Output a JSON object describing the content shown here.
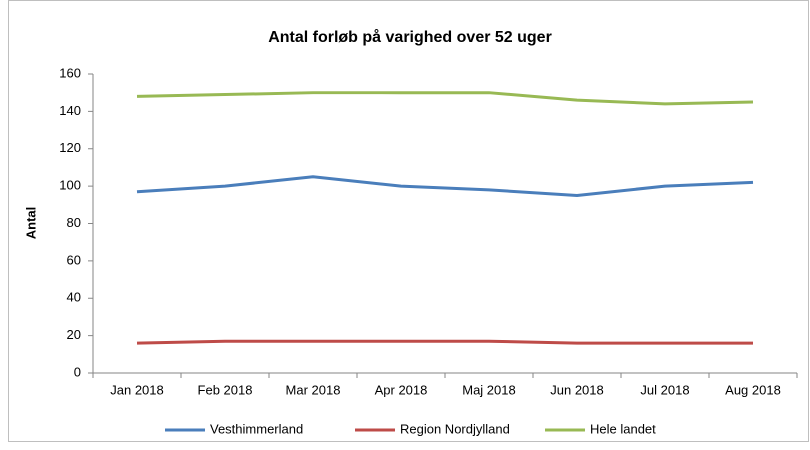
{
  "chart_data": {
    "type": "line",
    "title": "Antal forløb på varighed over 52 uger",
    "y_label": "Antal",
    "categories": [
      "Jan 2018",
      "Feb 2018",
      "Mar 2018",
      "Apr 2018",
      "Maj 2018",
      "Jun 2018",
      "Jul 2018",
      "Aug 2018"
    ],
    "series": [
      {
        "name": "Vesthimmerland",
        "color": "#4a7ebb",
        "values": [
          97,
          100,
          105,
          100,
          98,
          95,
          100,
          102
        ]
      },
      {
        "name": "Region Nordjylland",
        "color": "#be4b48",
        "values": [
          16,
          17,
          17,
          17,
          17,
          16,
          16,
          16
        ]
      },
      {
        "name": "Hele landet",
        "color": "#98b954",
        "values": [
          148,
          149,
          150,
          150,
          150,
          146,
          144,
          145
        ]
      }
    ],
    "ylim": [
      0,
      160
    ],
    "yticks": [
      0,
      20,
      40,
      60,
      80,
      100,
      120,
      140,
      160
    ],
    "grid": false,
    "legend": "bottom"
  }
}
